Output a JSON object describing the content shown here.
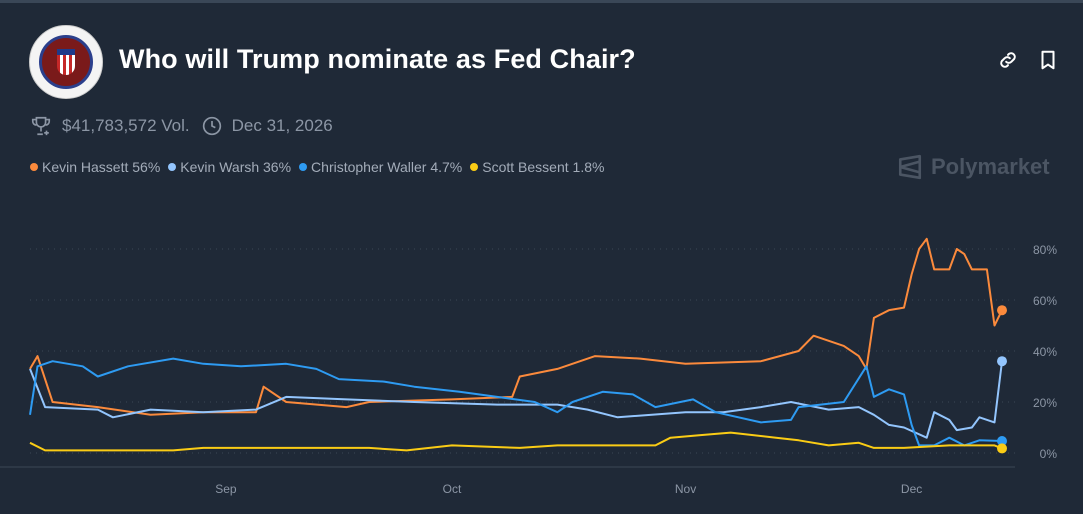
{
  "header": {
    "title": "Who will Trump nominate as Fed Chair?",
    "volume": "$41,783,572 Vol.",
    "end_date": "Dec 31, 2026",
    "brand": "Polymarket",
    "icons": [
      "federal-reserve-seal",
      "trophy-icon",
      "clock-icon",
      "link-icon",
      "bookmark-icon",
      "polymarket-logo"
    ]
  },
  "legend": [
    {
      "label": "Kevin Hassett 56%",
      "color": "#fb8a3c"
    },
    {
      "label": "Kevin Warsh 36%",
      "color": "#93c5fd"
    },
    {
      "label": "Christopher Waller 4.7%",
      "color": "#2e9bf2"
    },
    {
      "label": "Scott Bessent 1.8%",
      "color": "#facc15"
    }
  ],
  "chart_data": {
    "type": "line",
    "xlim": [
      "2025-08-06",
      "2025-12-13"
    ],
    "ylim": [
      0,
      90
    ],
    "yticks": [
      0,
      20,
      40,
      60,
      80
    ],
    "ytick_labels": [
      "0%",
      "20%",
      "40%",
      "60%",
      "80%"
    ],
    "xticks": [
      "2025-09-01",
      "2025-10-01",
      "2025-11-01",
      "2025-12-01"
    ],
    "xtick_labels": [
      "Sep",
      "Oct",
      "Nov",
      "Dec"
    ],
    "grid": "horizontal dotted",
    "series": [
      {
        "name": "Kevin Hassett",
        "color": "#fb8a3c",
        "points": [
          [
            "2025-08-06",
            33
          ],
          [
            "2025-08-07",
            38
          ],
          [
            "2025-08-09",
            20
          ],
          [
            "2025-08-15",
            18
          ],
          [
            "2025-08-22",
            15
          ],
          [
            "2025-08-29",
            16
          ],
          [
            "2025-09-05",
            16
          ],
          [
            "2025-09-06",
            26
          ],
          [
            "2025-09-09",
            20
          ],
          [
            "2025-09-17",
            18
          ],
          [
            "2025-09-20",
            20
          ],
          [
            "2025-10-01",
            21
          ],
          [
            "2025-10-09",
            22
          ],
          [
            "2025-10-10",
            30
          ],
          [
            "2025-10-15",
            33
          ],
          [
            "2025-10-20",
            38
          ],
          [
            "2025-10-26",
            37
          ],
          [
            "2025-11-01",
            35
          ],
          [
            "2025-11-11",
            36
          ],
          [
            "2025-11-16",
            40
          ],
          [
            "2025-11-18",
            46
          ],
          [
            "2025-11-22",
            42
          ],
          [
            "2025-11-24",
            38
          ],
          [
            "2025-11-25",
            33
          ],
          [
            "2025-11-26",
            53
          ],
          [
            "2025-11-28",
            56
          ],
          [
            "2025-11-30",
            57
          ],
          [
            "2025-12-01",
            70
          ],
          [
            "2025-12-02",
            80
          ],
          [
            "2025-12-03",
            84
          ],
          [
            "2025-12-04",
            72
          ],
          [
            "2025-12-06",
            72
          ],
          [
            "2025-12-07",
            80
          ],
          [
            "2025-12-08",
            78
          ],
          [
            "2025-12-09",
            72
          ],
          [
            "2025-12-11",
            72
          ],
          [
            "2025-12-12",
            50
          ],
          [
            "2025-12-13",
            56
          ]
        ]
      },
      {
        "name": "Kevin Warsh",
        "color": "#93c5fd",
        "points": [
          [
            "2025-08-06",
            33
          ],
          [
            "2025-08-08",
            18
          ],
          [
            "2025-08-15",
            17
          ],
          [
            "2025-08-17",
            14
          ],
          [
            "2025-08-22",
            17
          ],
          [
            "2025-08-29",
            16
          ],
          [
            "2025-09-05",
            17
          ],
          [
            "2025-09-09",
            22
          ],
          [
            "2025-09-17",
            21
          ],
          [
            "2025-09-26",
            20
          ],
          [
            "2025-10-07",
            19
          ],
          [
            "2025-10-15",
            19
          ],
          [
            "2025-10-19",
            17
          ],
          [
            "2025-10-23",
            14
          ],
          [
            "2025-11-01",
            16
          ],
          [
            "2025-11-06",
            16
          ],
          [
            "2025-11-11",
            18
          ],
          [
            "2025-11-15",
            20
          ],
          [
            "2025-11-20",
            17
          ],
          [
            "2025-11-24",
            18
          ],
          [
            "2025-11-26",
            15
          ],
          [
            "2025-11-28",
            11
          ],
          [
            "2025-11-30",
            10
          ],
          [
            "2025-12-03",
            6
          ],
          [
            "2025-12-04",
            16
          ],
          [
            "2025-12-06",
            13
          ],
          [
            "2025-12-07",
            9
          ],
          [
            "2025-12-09",
            10
          ],
          [
            "2025-12-10",
            14
          ],
          [
            "2025-12-12",
            12
          ],
          [
            "2025-12-13",
            36
          ]
        ]
      },
      {
        "name": "Christopher Waller",
        "color": "#2e9bf2",
        "points": [
          [
            "2025-08-06",
            15
          ],
          [
            "2025-08-07",
            34
          ],
          [
            "2025-08-09",
            36
          ],
          [
            "2025-08-13",
            34
          ],
          [
            "2025-08-15",
            30
          ],
          [
            "2025-08-19",
            34
          ],
          [
            "2025-08-25",
            37
          ],
          [
            "2025-08-29",
            35
          ],
          [
            "2025-09-03",
            34
          ],
          [
            "2025-09-09",
            35
          ],
          [
            "2025-09-13",
            33
          ],
          [
            "2025-09-16",
            29
          ],
          [
            "2025-09-22",
            28
          ],
          [
            "2025-09-26",
            26
          ],
          [
            "2025-10-02",
            24
          ],
          [
            "2025-10-07",
            22
          ],
          [
            "2025-10-12",
            20
          ],
          [
            "2025-10-15",
            16
          ],
          [
            "2025-10-17",
            20
          ],
          [
            "2025-10-21",
            24
          ],
          [
            "2025-10-25",
            23
          ],
          [
            "2025-10-28",
            18
          ],
          [
            "2025-11-02",
            21
          ],
          [
            "2025-11-05",
            16
          ],
          [
            "2025-11-11",
            12
          ],
          [
            "2025-11-15",
            13
          ],
          [
            "2025-11-16",
            18
          ],
          [
            "2025-11-22",
            20
          ],
          [
            "2025-11-25",
            34
          ],
          [
            "2025-11-26",
            22
          ],
          [
            "2025-11-28",
            25
          ],
          [
            "2025-11-30",
            23
          ],
          [
            "2025-12-01",
            11
          ],
          [
            "2025-12-02",
            3
          ],
          [
            "2025-12-04",
            3
          ],
          [
            "2025-12-06",
            6
          ],
          [
            "2025-12-08",
            3
          ],
          [
            "2025-12-10",
            5
          ],
          [
            "2025-12-13",
            4.7
          ]
        ]
      },
      {
        "name": "Scott Bessent",
        "color": "#facc15",
        "points": [
          [
            "2025-08-06",
            4
          ],
          [
            "2025-08-08",
            1
          ],
          [
            "2025-08-25",
            1
          ],
          [
            "2025-08-29",
            2
          ],
          [
            "2025-09-20",
            2
          ],
          [
            "2025-09-25",
            1
          ],
          [
            "2025-10-01",
            3
          ],
          [
            "2025-10-10",
            2
          ],
          [
            "2025-10-15",
            3
          ],
          [
            "2025-10-28",
            3
          ],
          [
            "2025-10-30",
            6
          ],
          [
            "2025-11-03",
            7
          ],
          [
            "2025-11-07",
            8
          ],
          [
            "2025-11-13",
            6
          ],
          [
            "2025-11-16",
            5
          ],
          [
            "2025-11-20",
            3
          ],
          [
            "2025-11-24",
            4
          ],
          [
            "2025-11-26",
            2
          ],
          [
            "2025-11-30",
            2
          ],
          [
            "2025-12-06",
            3
          ],
          [
            "2025-12-12",
            3
          ],
          [
            "2025-12-13",
            1.8
          ]
        ]
      }
    ]
  }
}
